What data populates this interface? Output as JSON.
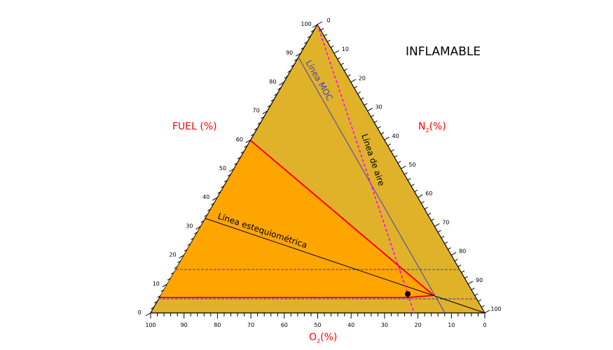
{
  "title": "INFLAMABLE",
  "axes": {
    "fuel": {
      "label": "FUEL (%)",
      "ticks": [
        "0",
        "10",
        "20",
        "30",
        "40",
        "50",
        "60",
        "70",
        "80",
        "90",
        "100"
      ]
    },
    "n2": {
      "label_main": "N",
      "label_sub": "2",
      "label_suffix": "(%)",
      "ticks": [
        "0",
        "10",
        "20",
        "30",
        "40",
        "50",
        "60",
        "70",
        "80",
        "90",
        "100"
      ]
    },
    "o2": {
      "label_main": "O",
      "label_sub": "2",
      "label_suffix": "(%)",
      "ticks": [
        "100",
        "90",
        "80",
        "70",
        "60",
        "50",
        "40",
        "30",
        "20",
        "10",
        "0"
      ]
    }
  },
  "annotations": {
    "moc_line": "Línea MOC",
    "air_line": "Línea de aire",
    "stoich_line": "Línea estequiométrica"
  },
  "colors": {
    "triangle_fill": "#e0b22a",
    "flammable_fill": "#ffa500",
    "axis_label": "#ff0000",
    "red_boundary": "#ff0000",
    "air_line": "#ff00ff",
    "moc_line": "#4040c0",
    "dashed_limits": "#6a4fa0",
    "stoich_line": "#000000"
  },
  "chart_data": {
    "type": "ternary",
    "title": "INFLAMABLE",
    "axes": [
      "FUEL (%)",
      "N2 (%)",
      "O2 (%)"
    ],
    "flammable_region": {
      "upper_limit_fuel_pct": 60,
      "lower_limit_fuel_pct": 5,
      "nose_fuel_pct": 6,
      "nose_o2_pct": 14
    },
    "lines": [
      {
        "name": "Línea de aire",
        "from": {
          "fuel": 100,
          "o2": 0,
          "n2": 0
        },
        "to": {
          "fuel": 0,
          "o2": 21,
          "n2": 79
        }
      },
      {
        "name": "Línea MOC",
        "o2_pct": 12
      },
      {
        "name": "Línea estequiométrica",
        "from": {
          "fuel": 32,
          "o2": 68,
          "n2": 0
        },
        "to": {
          "fuel": 0,
          "o2": 0,
          "n2": 100
        }
      },
      {
        "name": "UFL dashed",
        "fuel_pct": 15
      },
      {
        "name": "LFL dashed",
        "fuel_pct": 5
      }
    ],
    "point": {
      "fuel": 6,
      "o2": 23,
      "n2": 71
    }
  }
}
